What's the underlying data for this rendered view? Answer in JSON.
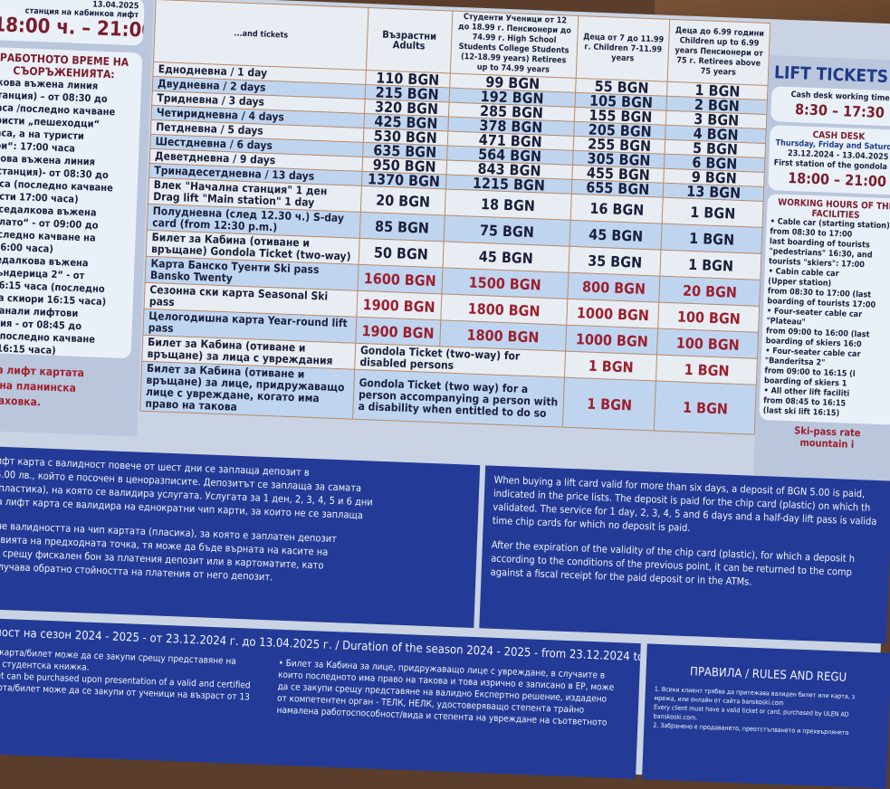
{
  "left": {
    "top_lines": [
      "13.04.2025",
      "станция на кабинков лифт"
    ],
    "top_time": "18:00 ч. – 21:00",
    "hours_title": "РАБОТНОТО ВРЕМЕ НА СЪОРЪЖЕНИЯТА:",
    "hours_lines": [
      "нкова въжена линия",
      "Станция) – от 08:30 до",
      "часа /последно качване",
      "уристи „пешеходци“",
      "часа, а на туристи",
      "ори“: 17:00 часа",
      "нкова въжена линия",
      "а станция)- от 08:30 до",
      "часа (последно качване",
      "ристи 17:00 часа)",
      "оиседалкова въжена",
      "„Плато“ - от 09:00 до",
      "последно качване на",
      "и 16:00 часа)",
      "иседалкова въжена",
      "„Бъндерица 2“ - от",
      "о 16:15 часа (последно",
      "е на скиори 16:15 часа)",
      "останали лифтови",
      "кения - от 08:45 до",
      "са (последно качване",
      "ри 16:15 часа)"
    ],
    "red_note": [
      "а на лифт картата",
      "очена планинска",
      "атраховка."
    ]
  },
  "table": {
    "headers": [
      "...and tickets",
      "Възрастни Adults",
      "Студенти Ученици от 12 до 18.99 г. Пенсионери до 74.99 г. High School Students College Students (12-18.99 years) Retirees up to 74.99 years",
      "Деца от 7 до 11.99 г. Children 7-11.99 years",
      "Деца до 6.99 години Children up to 6.99 years Пенсионери от 75 г. Retirees above 75 years"
    ],
    "rows": [
      {
        "label": "Еднодневна / 1 day",
        "adults": "110 BGN",
        "students": "99 BGN",
        "children": "55 BGN",
        "small": "1 BGN"
      },
      {
        "label": "Двудневна / 2 days",
        "adults": "215 BGN",
        "students": "192 BGN",
        "children": "105 BGN",
        "small": "2 BGN"
      },
      {
        "label": "Тридневна / 3 days",
        "adults": "320 BGN",
        "students": "285 BGN",
        "children": "155 BGN",
        "small": "3 BGN"
      },
      {
        "label": "Четиридневна / 4 days",
        "adults": "425 BGN",
        "students": "378 BGN",
        "children": "205 BGN",
        "small": "4 BGN"
      },
      {
        "label": "Петдневна / 5 days",
        "adults": "530 BGN",
        "students": "471 BGN",
        "children": "255 BGN",
        "small": "5 BGN"
      },
      {
        "label": "Шестдневна / 6 days",
        "adults": "635 BGN",
        "students": "564 BGN",
        "children": "305 BGN",
        "small": "6 BGN"
      },
      {
        "label": "Деветдневна / 9 days",
        "adults": "950 BGN",
        "students": "843 BGN",
        "children": "455 BGN",
        "small": "9 BGN"
      },
      {
        "label": "Тринадесетдневна / 13 days",
        "adults": "1370 BGN",
        "students": "1215 BGN",
        "children": "655 BGN",
        "small": "13 BGN"
      },
      {
        "label": "Влек \"Начална станция\" 1 ден Drag lift \"Main station\" 1 day",
        "adults": "20 BGN",
        "students": "18 BGN",
        "children": "16 BGN",
        "small": "1 BGN"
      },
      {
        "label": "Полудневна (след 12.30 ч.) S-day card (from 12:30 p.m.)",
        "adults": "85 BGN",
        "students": "75 BGN",
        "children": "45 BGN",
        "small": "1 BGN"
      },
      {
        "label": "Билет за Кабина (отиване и връщане) Gondola Ticket (two-way)",
        "adults": "50 BGN",
        "students": "45 BGN",
        "children": "35 BGN",
        "small": "1 BGN"
      },
      {
        "label": "Карта Банско Туенти Ski pass Bansko Twenty",
        "adults": "1600 BGN",
        "students": "1500 BGN",
        "children": "800 BGN",
        "small": "20 BGN",
        "red": true
      },
      {
        "label": "Сезонна ски карта Seasonal Ski pass",
        "adults": "1900 BGN",
        "students": "1800 BGN",
        "children": "1000 BGN",
        "small": "100 BGN",
        "red": true
      },
      {
        "label": "Целогодишна карта Year-round lift pass",
        "adults": "1900 BGN",
        "students": "1800 BGN",
        "children": "1000 BGN",
        "small": "100 BGN",
        "red": true
      }
    ],
    "disabled": {
      "label": "Билет за Кабина (отиване и връщане) за лица с увреждания",
      "desc": "Gondola Ticket (two-way) for disabled persons",
      "children": "1 BGN",
      "small": "1 BGN"
    },
    "companion": {
      "label": "Билет за Кабина (отиване и връщане) за лице, придружаващо лице с увреждане, когато има право на такова",
      "desc": "Gondola Ticket (two way) for a person accompanying a person with a disability when entitled to do so",
      "children": "1 BGN",
      "small": "1 BGN"
    }
  },
  "right": {
    "title": "LIFT TICKETS",
    "cash_label": "Cash desk working time",
    "cash_time": "8:30 – 17:30",
    "desk_title": "CASH DESK",
    "desk_lines": [
      "Thursday, Friday and Saturday",
      "23.12.2024 - 13.04.2025",
      "First station of the gondola lift"
    ],
    "desk_time": "18:00 – 21:00",
    "hours_title": "WORKING HOURS OF THE FACILITIES",
    "hours_lines": [
      "• Cable car (starting station)",
      "from 08:30 to 17:00",
      "last boarding of tourists",
      "\"pedestrians\" 16:30, and",
      "tourists \"skiers\": 17:00",
      "• Cabin cable car",
      "(Upper station)",
      "from 08:30 to 17:00 (last",
      "boarding of tourists 17:00",
      "• Four-seater cable car",
      "\"Plateau\"",
      "from 09:00 to 16:00 (last",
      "boarding of skiers 16:0",
      "• Four-seater cable car",
      "\"Banderitsa 2\"",
      "from 09:00 to 16:15 (l",
      "boarding of skiers 1",
      "• All other lift faciliti",
      "from 08:45 to 16:15",
      "(last ski lift 16:15)"
    ],
    "red_note": [
      "Ski-pass rate",
      "mountain i"
    ]
  },
  "blue_left": {
    "p1": [
      "...лифт карта с валидност повече от шест дни се заплаща депозит в",
      "на 5.00 лв., който е посочен в ценоразписите. Депозитът се заплаща за самата",
      "на (пластика), на която се валидира услугата. Услугата за 1 ден, 2, 3, 4, 5 и 6 дни",
      "евна лифт карта се валидира на еднократни чип карти, за които не се заплаща"
    ],
    "p2": [
      "ичане валидността на чип картата (пласика), за която е заплатен депозит",
      "условията на предходната точка, тя може да бъде върната на касите на",
      "вото срещу фискален бон за платения депозит или в картоматите, като",
      "п получава обратно стойността на платения от него депозит."
    ]
  },
  "blue_right": {
    "p1": [
      "When buying a lift card valid for more than six days, a deposit of BGN 5.00 is paid,",
      "indicated in the price lists. The deposit is paid for the chip card (plastic) on which th",
      "validated. The service for 1 day, 2, 3, 4, 5 and 6 days and a half-day lift pass is valida",
      "time chip cards for which no deposit is paid."
    ],
    "p2": [
      "After the expiration of the validity of the chip card (plastic), for which a deposit h",
      "according to the conditions of the previous point, it can be returned to the comp",
      "against a fiscal receipt for the paid deposit or in the ATMs."
    ]
  },
  "bottom": {
    "season": "телност на сезон 2024 - 2025 - от 23.12.2024 г. до 13.04.2025 г. / Duration of the season 2024 - 2025 - from 23.12.2024 to 13.04.2025",
    "col1": [
      "лифт карта/билет може да се закупи срещу представяне на",
      "ерена студентска книжка.",
      "d/ticket can be purchased upon presentation of a valid and certified",
      "",
      "фт карта/билет може да се закупи от ученици на възраст от 13"
    ],
    "col2": [
      "• Билет за Кабина за лице, придружаващо лице с увреждане, в случаите в",
      "които последното има право на такова и това изрично е записано в ЕР, може",
      "да се закупи срещу представяне на валидно Експертно решение, издадено",
      "от компетентен орган - ТЕЛК, НЕЛК, удостоверяващо степента трайно",
      "намалена работоспособност/вида и степента на увреждане на съответното"
    ],
    "rules_title": "ПРАВИЛА / RULES AND REGU",
    "rules": [
      "1. Всеки клиент трябва да притежава валиден билет или карта, з",
      "мрежа, или онлайн от сайта banskoski.com",
      "Every client must have a valid ticket or card, purchased by ULEN AD",
      "banskoski.com.",
      "2. Забранено е продаването, преотстъпването и прехвърлянето"
    ]
  },
  "colors": {
    "board": "#c9d3e3",
    "blue_panel": "#233b96",
    "price_red": "#9c1f2e",
    "title_blue": "#1f3a8a",
    "row_alt": "#bfd5ef"
  }
}
